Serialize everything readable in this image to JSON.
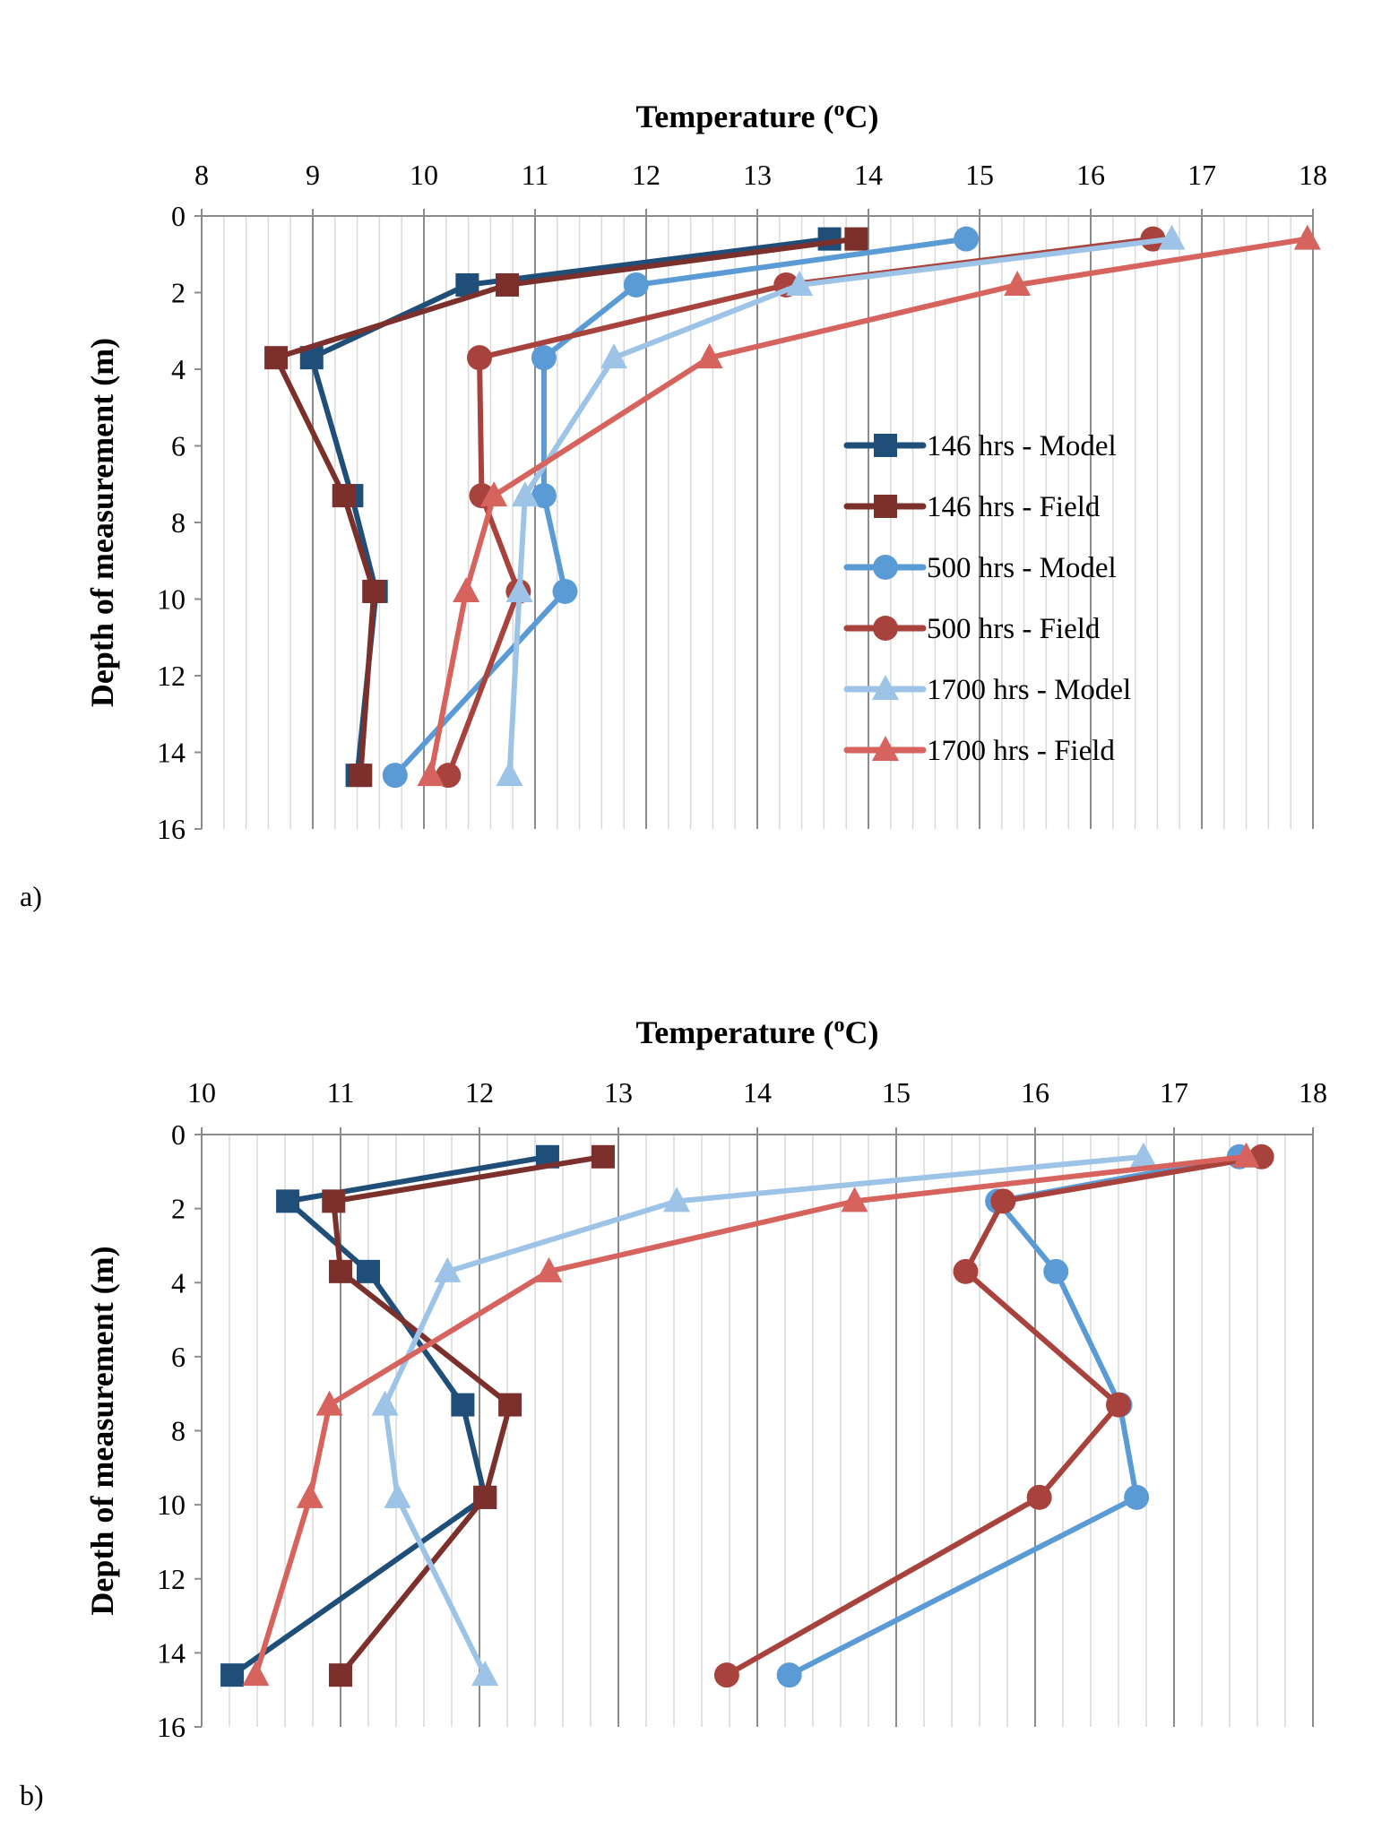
{
  "chart_data": [
    {
      "type": "line",
      "panel_label": "a)",
      "title": "Temperature (oC)",
      "title_parts": {
        "pre": "Temperature (",
        "sup": "o",
        "post": "C)"
      },
      "xlabel": "Temperature (oC)",
      "ylabel": "Depth of measurement (m)",
      "xlim": [
        8,
        18
      ],
      "ylim": [
        0,
        16
      ],
      "y_inverted": true,
      "x_axis_position": "top",
      "xticks": [
        "8",
        "9",
        "10",
        "11",
        "12",
        "13",
        "14",
        "15",
        "16",
        "17",
        "18"
      ],
      "yticks": [
        "0",
        "2",
        "4",
        "6",
        "8",
        "10",
        "12",
        "14",
        "16"
      ],
      "grid": "vertical major and minor",
      "legend": "right-center",
      "depths": [
        0.6,
        1.8,
        3.7,
        7.3,
        9.8,
        14.6
      ],
      "series": [
        {
          "name": "146 hrs - Model",
          "marker": "square",
          "color": "#1F4E79",
          "values": [
            13.65,
            10.39,
            8.99,
            9.35,
            9.57,
            9.4
          ]
        },
        {
          "name": "146 hrs - Field",
          "marker": "square",
          "color": "#7B302B",
          "values": [
            13.89,
            10.75,
            8.67,
            9.28,
            9.55,
            9.43
          ]
        },
        {
          "name": "500 hrs - Model",
          "marker": "circle",
          "color": "#5B9BD5",
          "values": [
            14.88,
            11.91,
            11.08,
            11.08,
            11.27,
            9.74
          ]
        },
        {
          "name": "500 hrs - Field",
          "marker": "circle",
          "color": "#A8423D",
          "values": [
            16.56,
            13.26,
            10.5,
            10.52,
            10.85,
            10.22
          ]
        },
        {
          "name": "1700 hrs - Model",
          "marker": "triangle",
          "color": "#9DC3E6",
          "values": [
            16.73,
            13.38,
            11.71,
            10.91,
            10.86,
            10.77
          ]
        },
        {
          "name": "1700 hrs - Field",
          "marker": "triangle",
          "color": "#D6635D",
          "values": [
            17.95,
            15.34,
            12.57,
            10.63,
            10.38,
            10.06
          ]
        }
      ]
    },
    {
      "type": "line",
      "panel_label": "b)",
      "title": "Temperature (oC)",
      "title_parts": {
        "pre": "Temperature (",
        "sup": "o",
        "post": "C)"
      },
      "xlabel": "Temperature (oC)",
      "ylabel": "Depth of measurement (m)",
      "xlim": [
        10,
        18
      ],
      "ylim": [
        0,
        16
      ],
      "y_inverted": true,
      "x_axis_position": "top",
      "xticks": [
        "10",
        "11",
        "12",
        "13",
        "14",
        "15",
        "16",
        "17",
        "18"
      ],
      "yticks": [
        "0",
        "2",
        "4",
        "6",
        "8",
        "10",
        "12",
        "14",
        "16"
      ],
      "grid": "vertical major and minor",
      "legend": "none",
      "depths": [
        0.6,
        1.8,
        3.7,
        7.3,
        9.8,
        14.6
      ],
      "series": [
        {
          "name": "146 hrs - Model",
          "marker": "square",
          "color": "#1F4E79",
          "values": [
            12.49,
            10.62,
            11.2,
            11.88,
            12.04,
            10.22
          ]
        },
        {
          "name": "146 hrs - Field",
          "marker": "square",
          "color": "#7B302B",
          "values": [
            12.89,
            10.95,
            11.0,
            12.22,
            12.04,
            11.0
          ]
        },
        {
          "name": "500 hrs - Model",
          "marker": "circle",
          "color": "#5B9BD5",
          "values": [
            17.47,
            15.73,
            16.15,
            16.61,
            16.73,
            14.23
          ]
        },
        {
          "name": "500 hrs - Field",
          "marker": "circle",
          "color": "#A8423D",
          "values": [
            17.63,
            15.77,
            15.5,
            16.6,
            16.03,
            13.78
          ]
        },
        {
          "name": "1700 hrs - Model",
          "marker": "triangle",
          "color": "#9DC3E6",
          "values": [
            16.78,
            13.42,
            11.77,
            11.32,
            11.41,
            12.04
          ]
        },
        {
          "name": "1700 hrs - Field",
          "marker": "triangle",
          "color": "#D6635D",
          "values": [
            17.52,
            14.7,
            12.5,
            10.92,
            10.78,
            10.39
          ]
        }
      ]
    }
  ]
}
